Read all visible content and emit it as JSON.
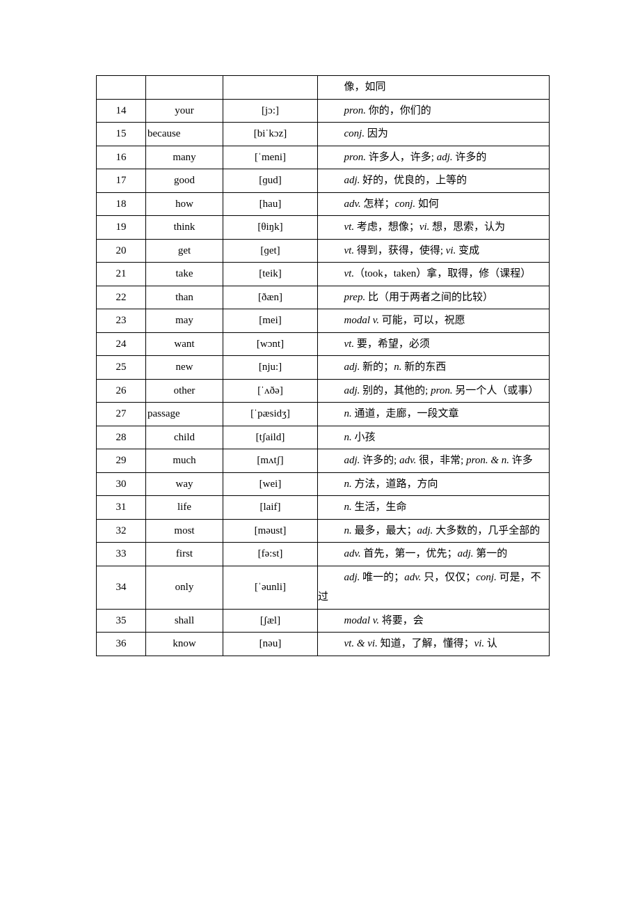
{
  "table": {
    "col_widths": {
      "num": 70,
      "word": 110,
      "ipa": 135,
      "def": "auto"
    },
    "border_color": "#000000",
    "background_color": "#ffffff",
    "text_color": "#000000",
    "font_family": "Times New Roman / SimSun",
    "base_fontsize": 15,
    "rows": [
      {
        "num": "",
        "word": "",
        "ipa": "",
        "def": "像，如同",
        "word_align": "center",
        "tall": false
      },
      {
        "num": "14",
        "word": "your",
        "ipa": "[jɔ:]",
        "def": "<em>pron.</em> 你的，你们的",
        "word_align": "center",
        "tall": true
      },
      {
        "num": "15",
        "word": "because",
        "ipa": "[biˈkɔz]",
        "def": "<em>conj.</em> 因为",
        "word_align": "left",
        "tall": true
      },
      {
        "num": "16",
        "word": "many",
        "ipa": "[ˈmeni]",
        "def": "<em>pron.</em> 许多人，许多; <em>adj.</em> 许多的",
        "word_align": "center",
        "tall": true
      },
      {
        "num": "17",
        "word": "good",
        "ipa": "[ɡud]",
        "def": "<em>adj.</em> 好的，优良的，上等的",
        "word_align": "center",
        "tall": true
      },
      {
        "num": "18",
        "word": "how",
        "ipa": "[hau]",
        "def": "<em>adv.</em> 怎样；<em>conj.</em> 如何",
        "word_align": "center",
        "tall": false
      },
      {
        "num": "19",
        "word": "think",
        "ipa": "[θiŋk]",
        "def": "<em>vt.</em> 考虑，想像；<em>vi.</em> 想，思索，认为",
        "word_align": "center",
        "tall": false
      },
      {
        "num": "20",
        "word": "get",
        "ipa": "[ɡet]",
        "def": "<em>vt.</em> 得到，获得，使得; <em>vi.</em> 变成",
        "word_align": "center",
        "tall": false
      },
      {
        "num": "21",
        "word": "take",
        "ipa": "[teik]",
        "def": "<em>vt.</em>（took，taken）拿，取得，修（课程）",
        "word_align": "center",
        "tall": false
      },
      {
        "num": "22",
        "word": "than",
        "ipa": "[ðæn]",
        "def": "<em>prep.</em> 比（用于两者之间的比较）",
        "word_align": "center",
        "tall": false
      },
      {
        "num": "23",
        "word": "may",
        "ipa": "[mei]",
        "def": "<em>modal v.</em> 可能，可以，祝愿",
        "word_align": "center",
        "tall": false
      },
      {
        "num": "24",
        "word": "want",
        "ipa": "[wɔnt]",
        "def": "<em>vt.</em> 要，希望，必须",
        "word_align": "center",
        "tall": false
      },
      {
        "num": "25",
        "word": "new",
        "ipa": "[nju:]",
        "def": "<em>adj.</em> 新的；<em>n.</em> 新的东西",
        "word_align": "center",
        "tall": false
      },
      {
        "num": "26",
        "word": "other",
        "ipa": "[ˈʌðə]",
        "def": "<em>adj.</em> 别的，其他的; <em>pron.</em> 另一个人（或事）",
        "word_align": "center",
        "tall": false
      },
      {
        "num": "27",
        "word": "passage",
        "ipa": "[ˈpæsidʒ]",
        "def": "<em>n.</em> 通道，走廊，一段文章",
        "word_align": "left",
        "tall": false
      },
      {
        "num": "28",
        "word": "child",
        "ipa": "[tʃaild]",
        "def": "<em>n.</em> 小孩",
        "word_align": "center",
        "tall": false
      },
      {
        "num": "29",
        "word": "much",
        "ipa": "[mʌtʃ]",
        "def": "<em>adj.</em> 许多的; <em>adv.</em> 很，非常; <em>pron. & n.</em> 许多",
        "word_align": "center",
        "tall": false
      },
      {
        "num": "30",
        "word": "way",
        "ipa": "[wei]",
        "def": "<em>n.</em> 方法，道路，方向",
        "word_align": "center",
        "tall": false
      },
      {
        "num": "31",
        "word": "life",
        "ipa": "[laif]",
        "def": "<em>n.</em> 生活，生命",
        "word_align": "center",
        "tall": false
      },
      {
        "num": "32",
        "word": "most",
        "ipa": "[məust]",
        "def": "<em>n.</em> 最多，最大；<em>adj.</em> 大多数的，几乎全部的",
        "word_align": "center",
        "tall": false
      },
      {
        "num": "33",
        "word": "first",
        "ipa": "[fə:st]",
        "def": "<em>adv.</em> 首先，第一，优先；<em>adj.</em> 第一的",
        "word_align": "center",
        "tall": false
      },
      {
        "num": "34",
        "word": "only",
        "ipa": "[ˈəunli]",
        "def": "<em>adj.</em> 唯一的；<em>adv.</em> 只，仅仅；<em>conj.</em> 可是，不过",
        "word_align": "center",
        "tall": false
      },
      {
        "num": "35",
        "word": "shall",
        "ipa": "[ʃæl]",
        "def": "<em>modal v.</em> 将要，会",
        "word_align": "center",
        "tall": false
      },
      {
        "num": "36",
        "word": "know",
        "ipa": "[nəu]",
        "def": "<em>vt. & vi.</em> 知道，了解，懂得；<em>vi.</em> 认",
        "word_align": "center",
        "tall": false
      }
    ]
  }
}
